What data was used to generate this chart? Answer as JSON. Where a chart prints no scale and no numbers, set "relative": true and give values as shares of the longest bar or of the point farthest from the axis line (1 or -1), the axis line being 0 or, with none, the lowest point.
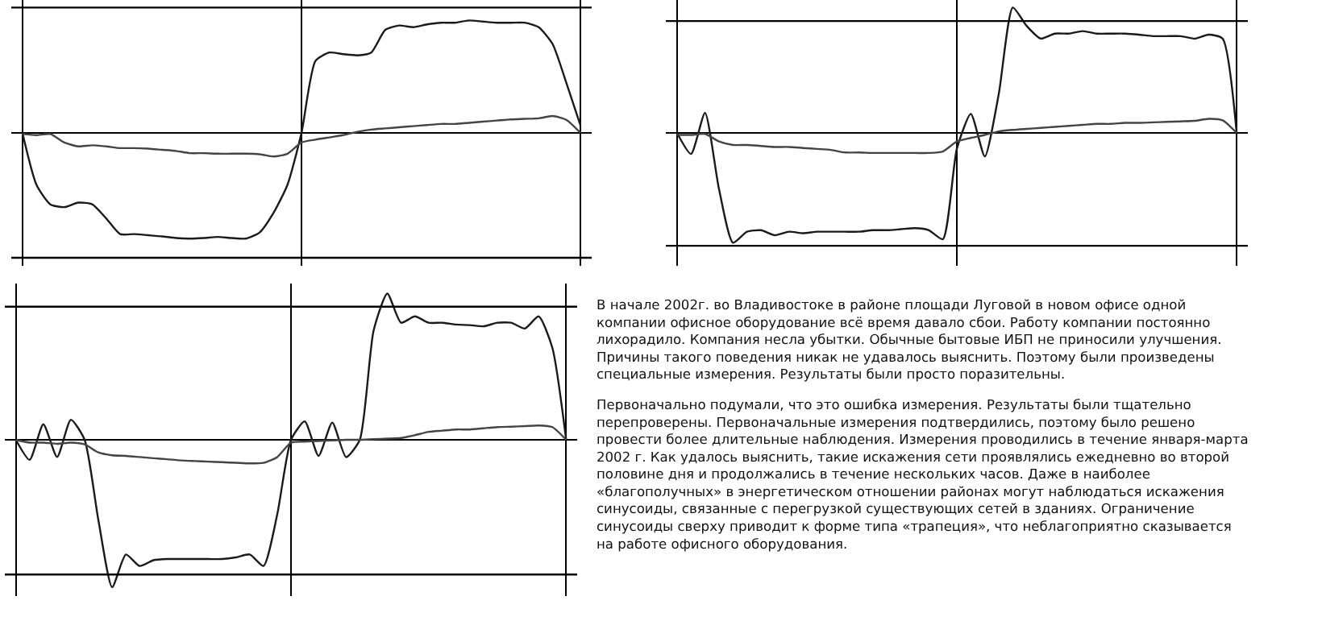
{
  "chart_data": [
    {
      "type": "line",
      "relative": true,
      "categories": [
        null,
        null,
        null,
        null,
        null,
        null,
        null,
        null,
        null,
        null,
        null,
        null,
        null,
        null,
        null,
        null,
        null,
        null,
        null,
        null,
        null,
        null,
        null,
        null,
        null,
        null,
        null,
        null,
        null,
        null,
        null,
        null,
        null,
        null,
        null,
        null,
        null,
        null,
        null,
        null,
        null
      ],
      "series": [
        {
          "color": "#1a1a1a",
          "values": [
            0,
            -0.46,
            -0.635,
            -0.66,
            -0.62,
            -0.635,
            -0.76,
            -0.9,
            -0.9,
            -0.91,
            -0.92,
            -0.935,
            -0.94,
            -0.935,
            -0.925,
            -0.935,
            -0.94,
            -0.885,
            -0.71,
            -0.46,
            0,
            0.64,
            0.715,
            0.7,
            0.69,
            0.715,
            0.915,
            0.955,
            0.94,
            0.965,
            0.98,
            0.98,
            1,
            0.99,
            0.98,
            0.98,
            0.98,
            0.94,
            0.79,
            0.44,
            0.065
          ]
        },
        {
          "color": "#444444",
          "values": [
            -0.01,
            -0.02,
            -0.01,
            -0.085,
            -0.12,
            -0.11,
            -0.12,
            -0.135,
            -0.135,
            -0.14,
            -0.15,
            -0.16,
            -0.18,
            -0.18,
            -0.185,
            -0.185,
            -0.185,
            -0.19,
            -0.21,
            -0.185,
            -0.085,
            -0.06,
            -0.04,
            -0.02,
            0.01,
            0.03,
            0.04,
            0.05,
            0.06,
            0.07,
            0.08,
            0.08,
            0.09,
            0.1,
            0.11,
            0.12,
            0.125,
            0.13,
            0.15,
            0.115,
            0
          ]
        }
      ],
      "grid": "x",
      "ref_lines": [
        {
          "axis": "y",
          "value": 1.115
        },
        {
          "axis": "y",
          "value": -1.11
        }
      ]
    },
    {
      "type": "line",
      "relative": true,
      "categories": [
        null,
        null,
        null,
        null,
        null,
        null,
        null,
        null,
        null,
        null,
        null,
        null,
        null,
        null,
        null,
        null,
        null,
        null,
        null,
        null,
        null,
        null,
        null,
        null,
        null,
        null,
        null,
        null,
        null,
        null,
        null,
        null,
        null,
        null,
        null,
        null,
        null,
        null,
        null,
        null,
        null
      ],
      "series": [
        {
          "color": "#1a1a1a",
          "values": [
            0,
            -0.168,
            0.16,
            -0.448,
            -0.876,
            -0.788,
            -0.776,
            -0.816,
            -0.788,
            -0.8,
            -0.788,
            -0.788,
            -0.788,
            -0.788,
            -0.776,
            -0.776,
            -0.768,
            -0.76,
            -0.776,
            -0.848,
            -0.128,
            0.152,
            -0.188,
            0.312,
            1,
            0.852,
            0.752,
            0.792,
            0.792,
            0.812,
            0.792,
            0.792,
            0.792,
            0.784,
            0.772,
            0.772,
            0.772,
            0.752,
            0.784,
            0.752,
            0
          ]
        },
        {
          "color": "#444444",
          "values": [
            -0.016,
            -0.016,
            -0.008,
            -0.068,
            -0.096,
            -0.096,
            -0.104,
            -0.112,
            -0.112,
            -0.12,
            -0.128,
            -0.136,
            -0.156,
            -0.156,
            -0.16,
            -0.16,
            -0.16,
            -0.16,
            -0.16,
            -0.148,
            -0.068,
            -0.04,
            -0.016,
            0.012,
            0.024,
            0.032,
            0.04,
            0.048,
            0.056,
            0.064,
            0.072,
            0.072,
            0.08,
            0.08,
            0.084,
            0.088,
            0.092,
            0.096,
            0.112,
            0.1,
            0
          ]
        }
      ],
      "grid": "x",
      "ref_lines": [
        {
          "axis": "y",
          "value": 0.892
        },
        {
          "axis": "y",
          "value": -0.9
        }
      ]
    },
    {
      "type": "line",
      "relative": true,
      "categories": [
        null,
        null,
        null,
        null,
        null,
        null,
        null,
        null,
        null,
        null,
        null,
        null,
        null,
        null,
        null,
        null,
        null,
        null,
        null,
        null,
        null,
        null,
        null,
        null,
        null,
        null,
        null,
        null,
        null,
        null,
        null,
        null,
        null,
        null,
        null,
        null,
        null,
        null,
        null,
        null,
        null
      ],
      "series": [
        {
          "color": "#1a1a1a",
          "values": [
            0,
            -0.136,
            0.105,
            -0.117,
            0.136,
            0,
            -0.545,
            -1,
            -0.778,
            -0.856,
            -0.817,
            -0.809,
            -0.809,
            -0.809,
            -0.809,
            -0.809,
            -0.798,
            -0.778,
            -0.856,
            -0.506,
            0,
            0.125,
            -0.109,
            0.117,
            -0.117,
            0,
            0.739,
            0.992,
            0.794,
            0.837,
            0.794,
            0.794,
            0.782,
            0.778,
            0.77,
            0.794,
            0.794,
            0.755,
            0.837,
            0.623,
            0
          ]
        },
        {
          "color": "#444444",
          "values": [
            0,
            -0.019,
            -0.019,
            -0.027,
            -0.019,
            -0.031,
            -0.086,
            -0.105,
            -0.109,
            -0.117,
            -0.125,
            -0.132,
            -0.14,
            -0.144,
            -0.148,
            -0.152,
            -0.156,
            -0.16,
            -0.156,
            -0.117,
            -0.019,
            -0.012,
            -0.008,
            -0.004,
            0,
            0,
            0.004,
            0.008,
            0.012,
            0.031,
            0.054,
            0.062,
            0.07,
            0.07,
            0.078,
            0.086,
            0.089,
            0.093,
            0.097,
            0.086,
            0
          ]
        }
      ],
      "grid": "x",
      "ref_lines": [
        {
          "axis": "y",
          "value": 0.903
        },
        {
          "axis": "y",
          "value": -0.914
        }
      ]
    },
    {
      "type": "other",
      "annotations": [
        "В начале 2002г. во Владивостоке в районе площади Луговой в новом офисе одной компании офисное оборудование всё время давало сбои. Работу компании постоянно лихорадило. Компания несла убытки. Обычные бытовые ИБП не приносили улучшения. Причины такого поведения никак не удавалось выяснить. Поэтому были произведены специальные измерения. Результаты были просто поразительны.",
        "Первоначально подумали, что это ошибка измерения. Результаты были тщательно перепроверены. Первоначальные измерения подтвердились, поэтому было решено провести более длительные наблюдения. Измерения проводились в течение января-марта 2002 г. Как удалось выяснить, такие искажения сети проявлялись ежедневно во второй половине дня и продолжались в течение нескольких часов. Даже в наиболее «благополучных» в энергетическом отношении районах могут наблюдаться искажения синусоиды, связанные с перегрузкой существующих сетей в зданиях. Ограничение синусоиды сверху приводит к форме типа «трапеция», что неблагоприятно сказывается на работе офисного оборудования."
      ]
    }
  ]
}
